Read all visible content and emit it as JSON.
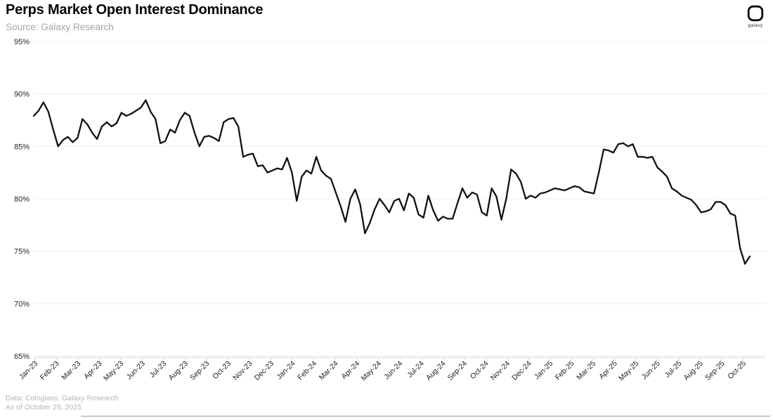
{
  "header": {
    "title": "Perps Market Open Interest Dominance",
    "source": "Source: Galaxy Research",
    "logo_label": "galaxy"
  },
  "footer": {
    "data_note": "Data: Coinglass, Galaxy Research",
    "as_of": "As of October 29, 2025"
  },
  "colors": {
    "line": "#111111",
    "grid": "#efefef",
    "axis": "#d9d9d9",
    "tick_label": "#262626",
    "muted_text": "#a6a6a6"
  },
  "chart_data": {
    "type": "line",
    "title": "Perps Market Open Interest Dominance",
    "xlabel": "",
    "ylabel": "",
    "ylim": [
      65,
      95
    ],
    "y_ticks": [
      95,
      90,
      85,
      80,
      75,
      70,
      65
    ],
    "y_tick_suffix": "%",
    "grid": "horizontal",
    "legend": "none",
    "x_tick_labels": [
      "Jan-23",
      "Feb-23",
      "Mar-23",
      "Apr-23",
      "May-23",
      "Jun-23",
      "Jul-23",
      "Aug-23",
      "Sep-23",
      "Oct-23",
      "Nov-23",
      "Dec-23",
      "Jan-24",
      "Feb-24",
      "Mar-24",
      "Apr-24",
      "May-24",
      "Jun-24",
      "Jul-24",
      "Aug-24",
      "Sep-24",
      "Oct-24",
      "Nov-24",
      "Dec-24",
      "Jan-25",
      "Feb-25",
      "Mar-25",
      "Apr-25",
      "May-25",
      "Jun-25",
      "Jul-25",
      "Aug-25",
      "Sep-25",
      "Oct-25"
    ],
    "series": [
      {
        "name": "Perps Market Open Interest Dominance (%)",
        "x_start": "2023-01-01",
        "x_interval_days": 7,
        "values": [
          87.9,
          88.4,
          89.2,
          88.3,
          86.6,
          85.0,
          85.6,
          85.9,
          85.4,
          85.8,
          87.6,
          87.1,
          86.3,
          85.7,
          86.9,
          87.3,
          86.9,
          87.2,
          88.2,
          87.9,
          88.1,
          88.4,
          88.7,
          89.4,
          88.3,
          87.6,
          85.3,
          85.5,
          86.6,
          86.3,
          87.5,
          88.2,
          87.9,
          86.3,
          85.0,
          85.9,
          86.0,
          85.8,
          85.5,
          87.3,
          87.6,
          87.7,
          86.9,
          84.0,
          84.2,
          84.3,
          83.1,
          83.2,
          82.5,
          82.7,
          82.9,
          82.8,
          83.9,
          82.5,
          79.8,
          82.1,
          82.7,
          82.4,
          84.0,
          82.7,
          82.2,
          81.9,
          80.6,
          79.3,
          77.8,
          80.0,
          80.9,
          79.5,
          76.7,
          77.7,
          79.0,
          80.0,
          79.4,
          78.7,
          79.8,
          80.0,
          78.9,
          80.5,
          80.1,
          78.5,
          78.2,
          80.3,
          78.9,
          77.9,
          78.3,
          78.1,
          78.1,
          79.6,
          81.0,
          80.1,
          80.6,
          80.4,
          78.7,
          78.4,
          81.0,
          80.2,
          78.0,
          80.0,
          82.8,
          82.4,
          81.6,
          80.0,
          80.3,
          80.1,
          80.5,
          80.6,
          80.8,
          81.0,
          80.9,
          80.8,
          81.0,
          81.2,
          81.1,
          80.7,
          80.6,
          80.5,
          82.5,
          84.7,
          84.6,
          84.4,
          85.2,
          85.3,
          85.0,
          85.2,
          84.0,
          84.0,
          83.9,
          84.0,
          83.0,
          82.6,
          82.1,
          81.0,
          80.7,
          80.3,
          80.1,
          79.9,
          79.4,
          78.7,
          78.8,
          79.0,
          79.7,
          79.7,
          79.4,
          78.6,
          78.4,
          75.3,
          73.8,
          74.5
        ]
      }
    ]
  }
}
